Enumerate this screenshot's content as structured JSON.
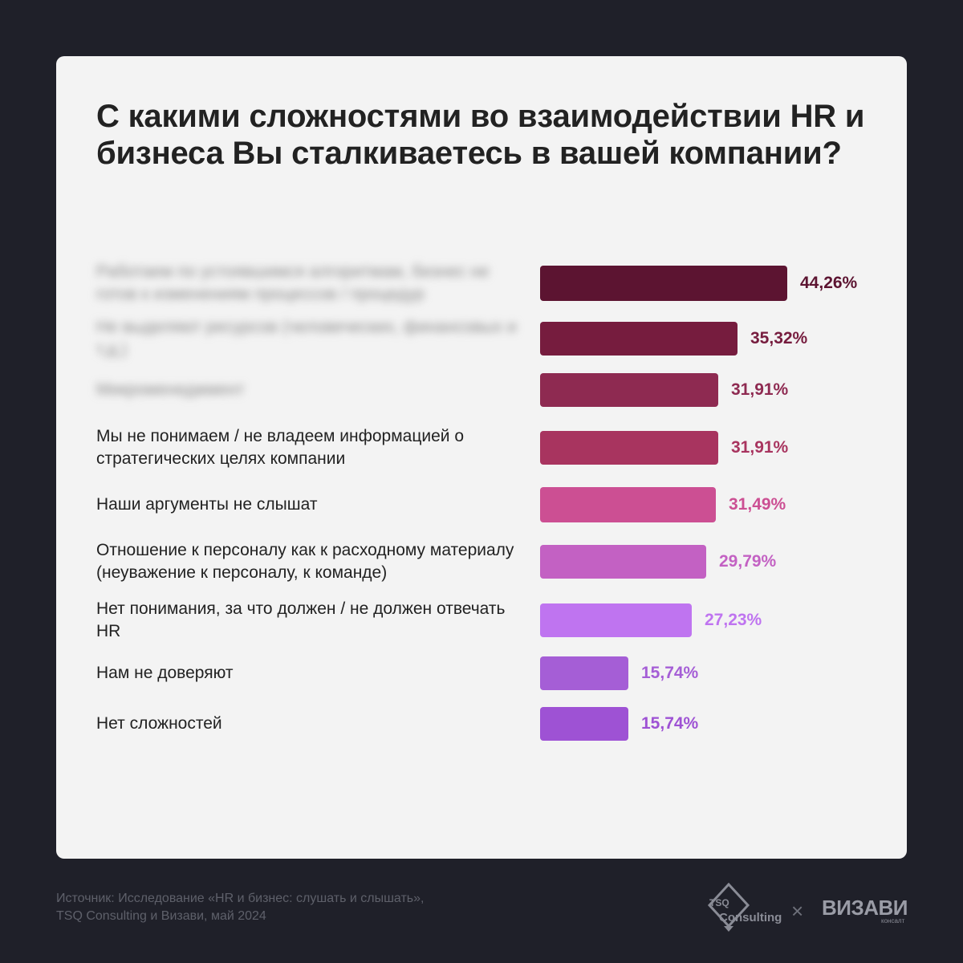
{
  "title": "С какими сложностями во взаимодействии HR и бизнеса Вы сталкиваетесь в вашей компании?",
  "chart_data": {
    "type": "bar",
    "orientation": "horizontal",
    "title": "С какими сложностями во взаимодействии HR и бизнеса Вы сталкиваетесь в вашей компании?",
    "categories": [
      "Работаем по устоявшимся алгоритмам, бизнес не готов к изменениям процессов / процедур",
      "Не выделяют ресурсов (человеческих, финансовых и т.д.)",
      "Микроменеджмент",
      "Мы не понимаем / не владеем информацией о стратегических целях компании",
      "Наши аргументы не слышат",
      "Отношение к персоналу как к расходному материалу (неуважение к персоналу, к команде)",
      "Нет понимания, за что должен / не должен отвечать HR",
      "Нам не доверяют",
      "Нет сложностей"
    ],
    "values": [
      44.26,
      35.32,
      31.91,
      31.91,
      31.49,
      29.79,
      27.23,
      15.74,
      15.74
    ],
    "value_labels": [
      "44,26%",
      "35,32%",
      "31,91%",
      "31,91%",
      "31,49%",
      "29,79%",
      "27,23%",
      "15,74%",
      "15,74%"
    ],
    "blurred_labels": [
      true,
      true,
      true,
      false,
      false,
      false,
      false,
      false,
      false
    ],
    "colors": [
      "#5c1431",
      "#761c3e",
      "#8e2a51",
      "#a8345f",
      "#cc4f93",
      "#c361c3",
      "#bf74f0",
      "#a55ed6",
      "#9e52d4"
    ],
    "xlim": [
      0,
      44.26
    ],
    "grid": false,
    "legend": "none"
  },
  "footer": {
    "line1": "Источник: Исследование «HR и бизнес: слушать и слышать»,",
    "line2": "TSQ Consulting и Визави, май 2024"
  },
  "logos": {
    "tsq_top": "TSQ",
    "tsq_bottom": "Consulting",
    "separator": "×",
    "vizavi": "ВИЗАВИ",
    "vizavi_sub": "консалт"
  }
}
